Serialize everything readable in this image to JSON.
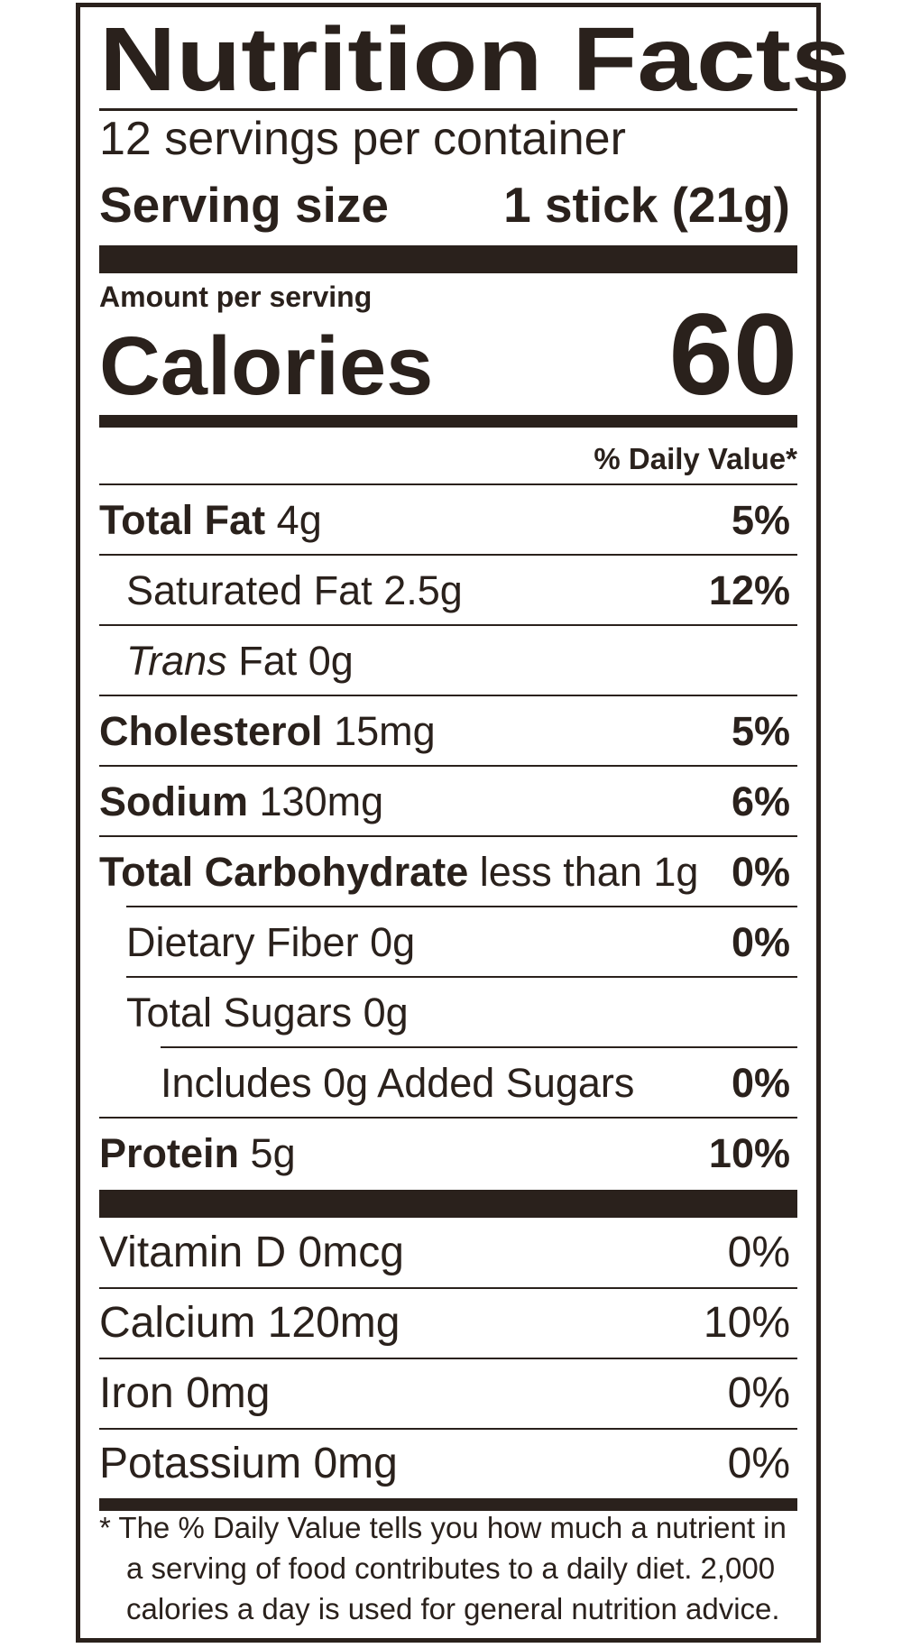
{
  "title": "Nutrition Facts",
  "servings_per_container": "12 servings per container",
  "serving_size": {
    "label": "Serving size",
    "value": "1 stick (21g)"
  },
  "amount_per_serving": "Amount per serving",
  "calories": {
    "label": "Calories",
    "value": "60"
  },
  "daily_value_header": "% Daily Value*",
  "nutrients": [
    {
      "name": "Total Fat",
      "amount": "4g",
      "dv": "5%"
    },
    {
      "name": "Saturated Fat",
      "amount": "2.5g",
      "dv": "12%"
    },
    {
      "name_italic": "Trans",
      "name": "Fat",
      "amount": "0g",
      "dv": ""
    },
    {
      "name": "Cholesterol",
      "amount": "15mg",
      "dv": "5%"
    },
    {
      "name": "Sodium",
      "amount": "130mg",
      "dv": "6%"
    },
    {
      "name": "Total Carbohydrate",
      "amount": "less than 1g",
      "dv": "0%"
    },
    {
      "name": "Dietary Fiber",
      "amount": "0g",
      "dv": "0%"
    },
    {
      "name": "Total Sugars",
      "amount": "0g",
      "dv": ""
    },
    {
      "name": "Includes 0g Added Sugars",
      "amount": "",
      "dv": "0%"
    },
    {
      "name": "Protein",
      "amount": "5g",
      "dv": "10%"
    }
  ],
  "vitamins": [
    {
      "name": "Vitamin D",
      "amount": "0mcg",
      "dv": "0%"
    },
    {
      "name": "Calcium",
      "amount": "120mg",
      "dv": "10%"
    },
    {
      "name": "Iron",
      "amount": "0mg",
      "dv": "0%"
    },
    {
      "name": "Potassium",
      "amount": "0mg",
      "dv": "0%"
    }
  ],
  "footnote": {
    "line1": "* The % Daily Value tells you how much a nutrient in",
    "line2": "a serving of food contributes to a daily diet. 2,000",
    "line3": "calories a day is used for general nutrition advice."
  },
  "colors": {
    "ink": "#2a211c",
    "background": "#ffffff"
  }
}
